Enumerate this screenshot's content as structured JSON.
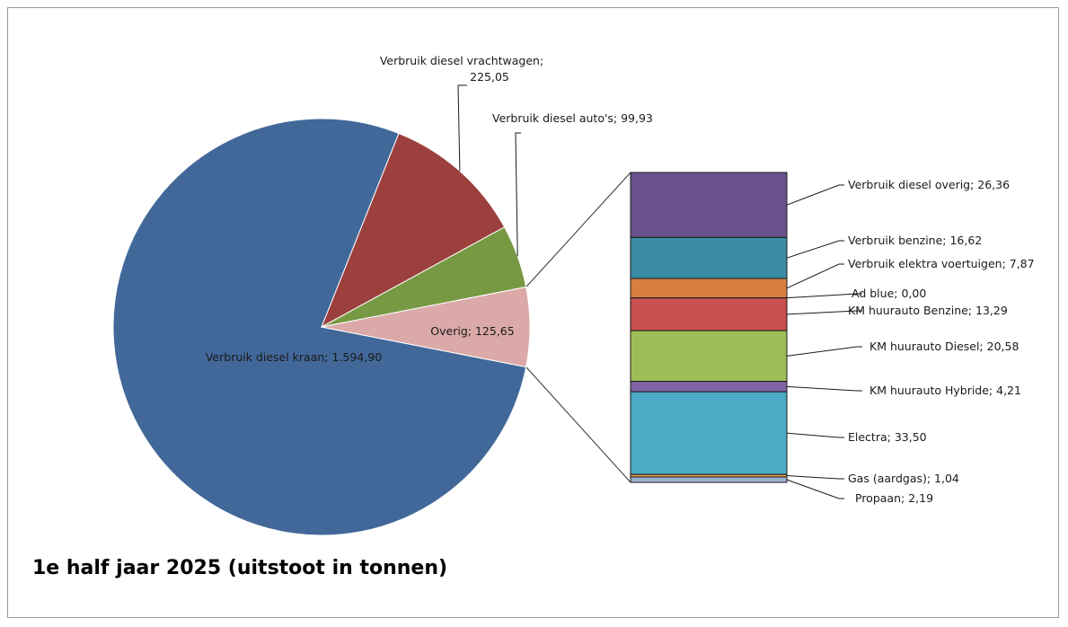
{
  "chart_data": {
    "type": "bar-of-pie",
    "title": "1e half jaar 2025 (uitstoot in tonnen)",
    "label_format": "{name}; {value}",
    "pie": {
      "slices": [
        {
          "name": "Verbruik diesel kraan",
          "value": 1594.9,
          "value_text": "1.594,90",
          "color": "#416899"
        },
        {
          "name": "Verbruik diesel vrachtwagen",
          "value": 225.05,
          "value_text": "225,05",
          "color": "#9c403d"
        },
        {
          "name": "Verbruik diesel auto's",
          "value": 99.93,
          "value_text": "99,93",
          "color": "#779943"
        },
        {
          "name": "Overig",
          "value": 125.65,
          "value_text": "125,65",
          "color": "#dba9a8"
        }
      ]
    },
    "bar": {
      "segments": [
        {
          "name": "Verbruik diesel overig",
          "value": 26.36,
          "value_text": "26,36",
          "color": "#69528b"
        },
        {
          "name": "Verbruik benzine",
          "value": 16.62,
          "value_text": "16,62",
          "color": "#3b8ca3"
        },
        {
          "name": "Verbruik elektra voertuigen",
          "value": 7.87,
          "value_text": "7,87",
          "color": "#d87f3d"
        },
        {
          "name": "Ad blue",
          "value": 0.0,
          "value_text": "0,00",
          "color": "#bb4e4d"
        },
        {
          "name": "KM huurauto Benzine",
          "value": 13.29,
          "value_text": "13,29",
          "color": "#c85050"
        },
        {
          "name": "KM huurauto Diesel",
          "value": 20.58,
          "value_text": "20,58",
          "color": "#9ebd59"
        },
        {
          "name": "KM huurauto Hybride",
          "value": 4.21,
          "value_text": "4,21",
          "color": "#8163a5"
        },
        {
          "name": "Electra",
          "value": 33.5,
          "value_text": "33,50",
          "color": "#4babc4"
        },
        {
          "name": "Gas (aardgas)",
          "value": 1.04,
          "value_text": "1,04",
          "color": "#e99d4d"
        },
        {
          "name": "Propaan",
          "value": 2.19,
          "value_text": "2,19",
          "color": "#9bb1d4"
        }
      ]
    }
  }
}
